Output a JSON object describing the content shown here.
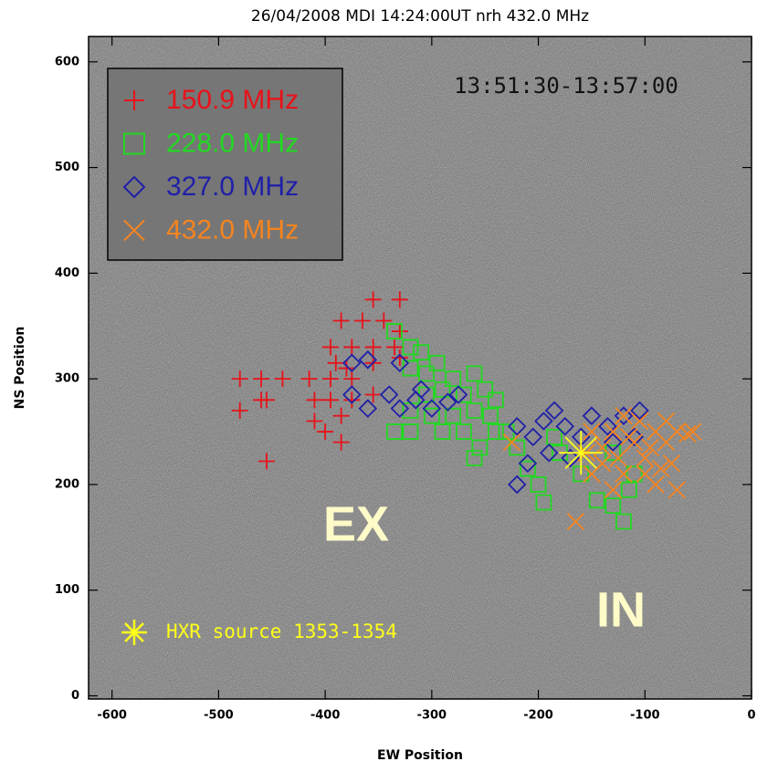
{
  "chart_data": {
    "type": "scatter",
    "title": "26/04/2008 MDI 14:24:00UT nrh 432.0 MHz",
    "time_range": "13:51:30-13:57:00",
    "xlabel": "EW Position",
    "ylabel": "NS Position",
    "xlim": [
      -622,
      0
    ],
    "ylim": [
      -3,
      624
    ],
    "xticks": [
      -600,
      -500,
      -400,
      -300,
      -200,
      -100,
      0
    ],
    "yticks": [
      0,
      100,
      200,
      300,
      400,
      500,
      600
    ],
    "annotations": [
      "EX",
      "IN"
    ],
    "legend": "upper left",
    "series": [
      {
        "name": "150.9 MHz",
        "color": "#e8121a",
        "marker": "plus",
        "x": [
          -480,
          -460,
          -440,
          -415,
          -395,
          -375,
          -480,
          -460,
          -455,
          -410,
          -395,
          -375,
          -355,
          -410,
          -385,
          -400,
          -385,
          -455,
          -395,
          -375,
          -355,
          -335,
          -385,
          -365,
          -345,
          -330,
          -355,
          -330,
          -390,
          -355,
          -330,
          -380
        ],
        "y": [
          300,
          300,
          300,
          300,
          300,
          300,
          270,
          280,
          280,
          280,
          280,
          280,
          285,
          260,
          265,
          250,
          240,
          222,
          330,
          330,
          330,
          330,
          355,
          355,
          355,
          345,
          375,
          375,
          315,
          315,
          320,
          310
        ]
      },
      {
        "name": "228.0 MHz",
        "color": "#22d822",
        "marker": "square",
        "x": [
          -335,
          -320,
          -310,
          -295,
          -320,
          -305,
          -280,
          -260,
          -290,
          -270,
          -250,
          -240,
          -305,
          -320,
          -300,
          -280,
          -260,
          -245,
          -240,
          -270,
          -290,
          -320,
          -335,
          -255,
          -260,
          -230,
          -220,
          -210,
          -200,
          -195,
          -180,
          -160,
          -145,
          -130,
          -120,
          -115,
          -110,
          -130,
          -185
        ],
        "y": [
          345,
          330,
          325,
          315,
          310,
          305,
          300,
          305,
          290,
          285,
          290,
          280,
          285,
          270,
          265,
          265,
          270,
          265,
          250,
          250,
          250,
          250,
          250,
          235,
          225,
          250,
          235,
          215,
          200,
          183,
          230,
          210,
          185,
          180,
          165,
          195,
          210,
          230,
          245
        ]
      },
      {
        "name": "327.0 MHz",
        "color": "#2020a8",
        "marker": "diamond",
        "x": [
          -375,
          -360,
          -330,
          -375,
          -360,
          -340,
          -330,
          -315,
          -300,
          -285,
          -275,
          -310,
          -220,
          -205,
          -195,
          -185,
          -175,
          -160,
          -150,
          -135,
          -120,
          -105,
          -190,
          -170,
          -210,
          -220,
          -130,
          -110
        ],
        "y": [
          315,
          318,
          315,
          285,
          272,
          285,
          272,
          280,
          272,
          278,
          285,
          290,
          255,
          245,
          260,
          270,
          255,
          245,
          265,
          255,
          265,
          270,
          230,
          225,
          220,
          200,
          240,
          245
        ]
      },
      {
        "name": "432.0 MHz",
        "color": "#f5841f",
        "marker": "x",
        "x": [
          -165,
          -150,
          -140,
          -130,
          -120,
          -110,
          -100,
          -90,
          -80,
          -70,
          -60,
          -55,
          -75,
          -70,
          -90,
          -100,
          -120,
          -130,
          -140,
          -150,
          -105,
          -95,
          -125,
          -85,
          -115,
          -80,
          -155,
          -225
        ],
        "y": [
          165,
          210,
          235,
          250,
          265,
          240,
          225,
          250,
          240,
          250,
          248,
          250,
          220,
          195,
          200,
          210,
          210,
          195,
          220,
          250,
          260,
          235,
          225,
          215,
          245,
          260,
          230,
          240
        ]
      }
    ],
    "hxr_source": {
      "name": "HXR source 1353-1354",
      "color": "#ffff1a",
      "marker": "asterisk",
      "x": [
        -160
      ],
      "y": [
        230
      ]
    }
  }
}
